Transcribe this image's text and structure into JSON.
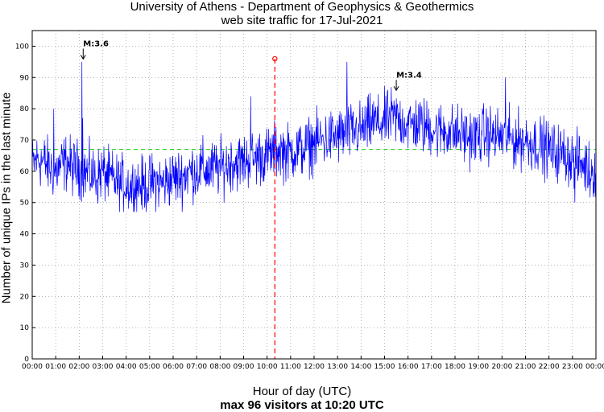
{
  "chart_data": {
    "type": "line",
    "title": "University of Athens - Department of Geophysics & Geothermics",
    "subtitle": "web site traffic for 17-Jul-2021",
    "xlabel": "Hour of day (UTC)",
    "ylabel": "Number of unique IPs in the last minute",
    "note": "max 96 visitors at 10:20 UTC",
    "xlim": [
      0,
      24
    ],
    "ylim": [
      0,
      105
    ],
    "x_ticks": [
      "00:00",
      "01:00",
      "02:00",
      "03:00",
      "04:00",
      "05:00",
      "06:00",
      "07:00",
      "08:00",
      "09:00",
      "10:00",
      "11:00",
      "12:00",
      "13:00",
      "14:00",
      "15:00",
      "16:00",
      "17:00",
      "18:00",
      "19:00",
      "20:00",
      "21:00",
      "22:00",
      "23:00",
      "00:00"
    ],
    "y_ticks": [
      0,
      10,
      20,
      30,
      40,
      50,
      60,
      70,
      80,
      90,
      100
    ],
    "grid": true,
    "colors": {
      "traffic": "#0000ff",
      "mean": "#00cc00",
      "max": "#ff0000"
    },
    "mean_segments": [
      {
        "x_start": 0,
        "x_end": 10.33,
        "value": 67
      },
      {
        "x_start": 10.33,
        "x_end": 24,
        "value": 67
      }
    ],
    "max_point": {
      "x": 10.33,
      "y": 96
    },
    "annotations": [
      {
        "label": "M:3.6",
        "x": 2.17,
        "y": 100
      },
      {
        "label": "M:3.4",
        "x": 15.5,
        "y": 90
      }
    ],
    "series": [
      {
        "step_hours": 0.25,
        "values": [
          62,
          64,
          63,
          61,
          60,
          62,
          63,
          61,
          61,
          60,
          59,
          58,
          60,
          58,
          57,
          56,
          56,
          55,
          56,
          55,
          56,
          57,
          56,
          57,
          58,
          58,
          59,
          60,
          60,
          61,
          60,
          61,
          61,
          62,
          63,
          63,
          63,
          64,
          64,
          65,
          65,
          66,
          67,
          66,
          66,
          67,
          67,
          68,
          69,
          70,
          70,
          71,
          71,
          72,
          72,
          73,
          73,
          74,
          76,
          75,
          76,
          77,
          77,
          76,
          75,
          75,
          75,
          74,
          74,
          73,
          73,
          73,
          72,
          72,
          71,
          71,
          71,
          72,
          72,
          71,
          71,
          71,
          70,
          70,
          70,
          69,
          69,
          68,
          67,
          66,
          66,
          65,
          64,
          63,
          62,
          60,
          61
        ],
        "spikes": [
          {
            "x": 0.92,
            "y": 80
          },
          {
            "x": 2.12,
            "y": 95
          },
          {
            "x": 2.15,
            "y": 77
          },
          {
            "x": 9.3,
            "y": 84
          },
          {
            "x": 13.4,
            "y": 95
          },
          {
            "x": 20.15,
            "y": 90
          },
          {
            "x": 23.1,
            "y": 50
          }
        ]
      }
    ]
  }
}
